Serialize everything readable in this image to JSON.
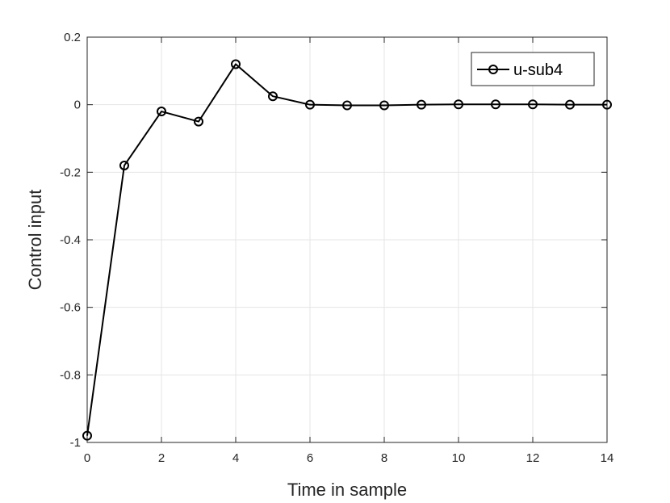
{
  "chart_data": {
    "type": "line",
    "xlabel": "Time in sample",
    "ylabel": "Control input",
    "xlim": [
      0,
      14
    ],
    "ylim": [
      -1,
      0.2
    ],
    "xticks": [
      0,
      2,
      4,
      6,
      8,
      10,
      12,
      14
    ],
    "yticks": [
      0.2,
      0,
      -0.2,
      -0.4,
      -0.6,
      -0.8,
      -1
    ],
    "xtick_labels": [
      "0",
      "2",
      "4",
      "6",
      "8",
      "10",
      "12",
      "14"
    ],
    "ytick_labels": [
      "0.2",
      "0",
      "-0.2",
      "-0.4",
      "-0.6",
      "-0.8",
      "-1"
    ],
    "grid": true,
    "legend_position": "top-right",
    "colors": {
      "line": "#000000",
      "grid": "#e5e5e5",
      "axis": "#262626"
    },
    "series": [
      {
        "name": "u-sub4",
        "marker": "circle",
        "x": [
          0,
          1,
          2,
          3,
          4,
          5,
          6,
          7,
          8,
          9,
          10,
          11,
          12,
          13,
          14
        ],
        "y": [
          -0.98,
          -0.18,
          -0.02,
          -0.05,
          0.12,
          0.025,
          0.0,
          -0.002,
          -0.002,
          0.0,
          0.001,
          0.001,
          0.001,
          0.0,
          0.0
        ]
      }
    ]
  }
}
